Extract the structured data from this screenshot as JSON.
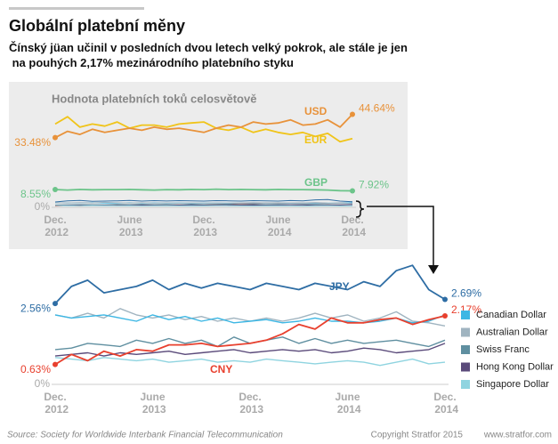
{
  "title": "Globální platební měny",
  "subtitle": "Čínský jüan učinil v posledních dvou letech velký pokrok, ale stále je jen na pouhých 2,17% mezinárodního platebního styku",
  "source": "Source: Society for Worldwide Interbank Financial Telecommunication",
  "copyright": "Copyright Stratfor 2015",
  "website": "www.stratfor.com",
  "chart_data": [
    {
      "type": "line",
      "title": "Hodnota platebních toků celosvětově",
      "categories": [
        "Dec. 2012",
        null,
        null,
        null,
        null,
        null,
        "June 2013",
        null,
        null,
        null,
        null,
        null,
        "Dec. 2013",
        null,
        null,
        null,
        null,
        null,
        "June 2014",
        null,
        null,
        null,
        null,
        null,
        "Dec. 2014"
      ],
      "ylim": [
        0,
        50
      ],
      "yticks": [
        {
          "value": 0,
          "label": "0%"
        }
      ],
      "series": [
        {
          "name": "USD",
          "color": "#e8923a",
          "label_style": "inline",
          "values": [
            33.48,
            36.5,
            35,
            37.5,
            36,
            37,
            38,
            37,
            38.5,
            37.5,
            38,
            37,
            36,
            38,
            39.5,
            38.5,
            41,
            40,
            40.5,
            42,
            39.5,
            40,
            42,
            38.5,
            44.64
          ],
          "value_labels": [
            "33.48%",
            null,
            null,
            null,
            null,
            null,
            null,
            null,
            null,
            null,
            null,
            null,
            null,
            null,
            null,
            null,
            null,
            null,
            null,
            null,
            null,
            null,
            null,
            null,
            "44.64%"
          ]
        },
        {
          "name": "EUR",
          "color": "#f0c419",
          "label_style": "inline",
          "values": [
            40,
            43.5,
            38.5,
            40,
            39,
            41,
            38,
            39.5,
            39.5,
            38.5,
            40,
            40.5,
            41,
            38,
            37,
            38.5,
            36,
            37.5,
            36,
            35,
            36,
            34,
            35.5,
            31.5,
            33
          ]
        },
        {
          "name": "GBP",
          "color": "#6cc48a",
          "label_style": "inline",
          "values": [
            8.55,
            8.3,
            8.6,
            8.4,
            8.5,
            8.5,
            8.6,
            8.4,
            8.3,
            8.5,
            8.4,
            8.6,
            8.5,
            8.7,
            8.5,
            8.6,
            8.5,
            8.4,
            8.6,
            8.5,
            8.5,
            8.4,
            8.3,
            8.0,
            7.92
          ],
          "value_labels": [
            "8.55%",
            null,
            null,
            null,
            null,
            null,
            null,
            null,
            null,
            null,
            null,
            null,
            null,
            null,
            null,
            null,
            null,
            null,
            null,
            null,
            null,
            null,
            null,
            null,
            "7.92%"
          ]
        }
      ]
    },
    {
      "type": "line",
      "categories": [
        "Dec. 2012",
        null,
        null,
        null,
        null,
        null,
        "June 2013",
        null,
        null,
        null,
        null,
        null,
        "Dec. 2013",
        null,
        null,
        null,
        null,
        null,
        "June 2014",
        null,
        null,
        null,
        null,
        null,
        "Dec. 2014"
      ],
      "ylim": [
        0,
        4
      ],
      "yticks": [
        {
          "value": 0,
          "label": "0%"
        }
      ],
      "legend": "right",
      "series": [
        {
          "name": "JPY",
          "color": "#2e6da4",
          "label_style": "inline",
          "values": [
            2.56,
            3.1,
            3.3,
            2.9,
            3.0,
            3.1,
            3.3,
            3.0,
            3.2,
            3.05,
            3.2,
            3.1,
            3.0,
            3.2,
            3.1,
            3.0,
            3.2,
            3.1,
            3.0,
            3.25,
            3.1,
            3.6,
            3.77,
            3.0,
            2.69
          ],
          "value_labels": [
            "2.56%",
            null,
            null,
            null,
            null,
            null,
            null,
            null,
            null,
            null,
            null,
            null,
            null,
            null,
            null,
            null,
            null,
            null,
            null,
            null,
            null,
            null,
            null,
            null,
            "2.69%"
          ]
        },
        {
          "name": "CNY",
          "color": "#e8402e",
          "label_style": "inline",
          "values": [
            0.63,
            0.95,
            0.75,
            1.05,
            0.9,
            1.1,
            1.05,
            1.25,
            1.25,
            1.3,
            1.2,
            1.25,
            1.3,
            1.4,
            1.6,
            1.9,
            1.75,
            2.1,
            1.95,
            1.95,
            2.05,
            2.1,
            1.9,
            2.05,
            2.17
          ],
          "value_labels": [
            "0.63%",
            null,
            null,
            null,
            null,
            null,
            null,
            null,
            null,
            null,
            null,
            null,
            null,
            null,
            null,
            null,
            null,
            null,
            null,
            null,
            null,
            null,
            null,
            null,
            "2.17%"
          ]
        },
        {
          "name": "Canadian Dollar",
          "color": "#3db7e4",
          "label_style": "legend",
          "values": [
            2.2,
            2.1,
            2.15,
            2.2,
            2.1,
            2.0,
            2.2,
            2.05,
            2.15,
            2.0,
            2.1,
            1.95,
            2.0,
            2.05,
            1.95,
            2.0,
            2.1,
            2.0,
            2.0,
            1.95,
            2.0,
            2.1,
            1.95,
            2.0,
            2.2
          ]
        },
        {
          "name": "Australian Dollar",
          "color": "#a0b4c0",
          "label_style": "legend",
          "values": [
            2.2,
            2.1,
            2.25,
            2.1,
            2.4,
            2.2,
            2.1,
            2.2,
            2.05,
            2.15,
            2.0,
            2.1,
            2.0,
            2.1,
            2.0,
            2.1,
            2.25,
            2.1,
            2.2,
            2.0,
            2.1,
            2.3,
            2.0,
            1.95,
            1.85
          ]
        },
        {
          "name": "Swiss Franc",
          "color": "#5f8fa0",
          "label_style": "legend",
          "values": [
            1.1,
            1.15,
            1.3,
            1.25,
            1.2,
            1.4,
            1.3,
            1.45,
            1.3,
            1.4,
            1.2,
            1.5,
            1.3,
            1.4,
            1.5,
            1.3,
            1.45,
            1.3,
            1.4,
            1.3,
            1.35,
            1.4,
            1.3,
            1.2,
            1.4
          ]
        },
        {
          "name": "Hong Kong Dollar",
          "color": "#5a4a7a",
          "label_style": "legend",
          "values": [
            0.9,
            0.95,
            1.0,
            0.9,
            1.0,
            0.95,
            1.0,
            1.05,
            0.95,
            1.0,
            1.05,
            1.1,
            1.0,
            1.05,
            1.1,
            1.05,
            1.1,
            1.0,
            1.05,
            1.15,
            1.1,
            1.0,
            1.05,
            1.1,
            1.3
          ]
        },
        {
          "name": "Singapore Dollar",
          "color": "#8fd4e0",
          "label_style": "legend",
          "values": [
            0.85,
            0.8,
            0.75,
            0.85,
            0.8,
            0.75,
            0.8,
            0.7,
            0.75,
            0.8,
            0.7,
            0.75,
            0.7,
            0.8,
            0.75,
            0.7,
            0.65,
            0.7,
            0.75,
            0.7,
            0.6,
            0.7,
            0.8,
            0.65,
            0.7
          ]
        }
      ]
    }
  ]
}
